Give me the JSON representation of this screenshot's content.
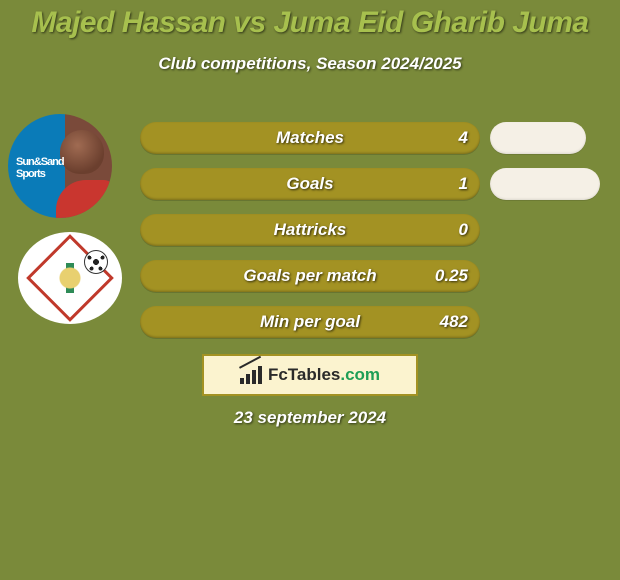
{
  "background_color": "#7a8a3a",
  "title": {
    "text": "Majed Hassan vs Juma Eid Gharib Juma",
    "color": "#a7c04e",
    "fontsize": 30
  },
  "subtitle": {
    "text": "Club competitions, Season 2024/2025",
    "color": "#ffffff",
    "fontsize": 17
  },
  "row_style": {
    "bar_color": "#a39223",
    "label_color": "#ffffff",
    "label_fontsize": 17,
    "value_color": "#ffffff",
    "value_fontsize": 17,
    "pill_color": "#f5f0e6"
  },
  "stats": [
    {
      "label": "Matches",
      "left_value": "4",
      "has_right_pill": true
    },
    {
      "label": "Goals",
      "left_value": "1",
      "has_right_pill": true
    },
    {
      "label": "Hattricks",
      "left_value": "0",
      "has_right_pill": false
    },
    {
      "label": "Goals per match",
      "left_value": "0.25",
      "has_right_pill": false
    },
    {
      "label": "Min per goal",
      "left_value": "482",
      "has_right_pill": false
    }
  ],
  "brand": {
    "text_before_dot": "FcTables",
    "text_after_dot": ".com",
    "border_color": "#a39223",
    "background_color": "#fbf3cf",
    "text_color": "#2a2a2a",
    "fontsize": 17
  },
  "date": {
    "text": "23 september 2024",
    "color": "#ffffff",
    "fontsize": 17
  },
  "avatars": {
    "player1_sponsor_text": "Sun&Sand\nSports"
  }
}
